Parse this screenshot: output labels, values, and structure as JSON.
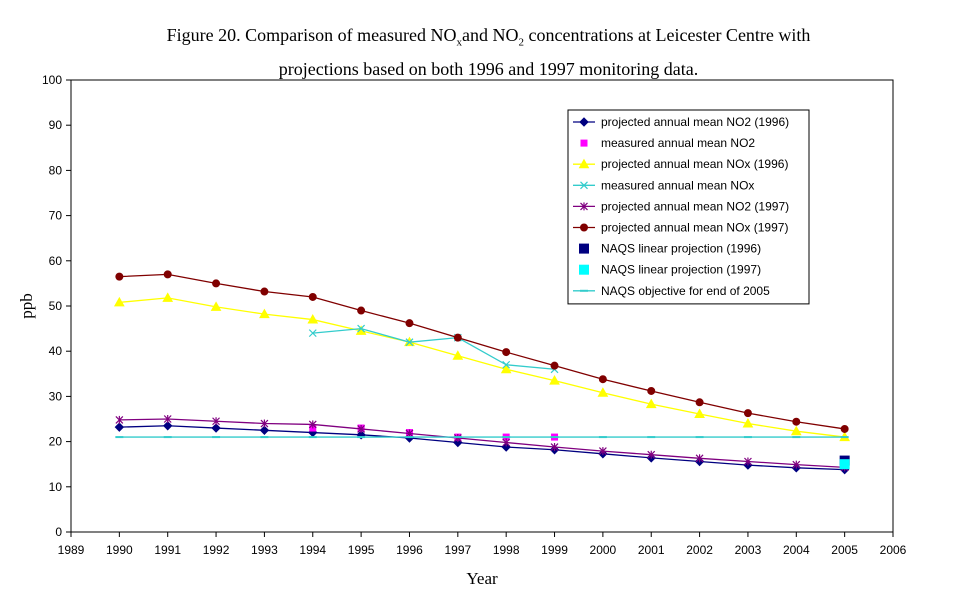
{
  "chart_data": {
    "type": "line",
    "title_line1_parts": [
      "Figure 20. Comparison of measured NO",
      "x",
      "and NO",
      "2",
      " concentrations at Leicester Centre with"
    ],
    "title_line2": "projections based on both 1996 and 1997 monitoring data.",
    "xlabel": "Year",
    "ylabel": "ppb",
    "xlim": [
      1989,
      2006
    ],
    "ylim": [
      0,
      100
    ],
    "xticks": [
      1989,
      1990,
      1991,
      1992,
      1993,
      1994,
      1995,
      1996,
      1997,
      1998,
      1999,
      2000,
      2001,
      2002,
      2003,
      2004,
      2005,
      2006
    ],
    "yticks": [
      0,
      10,
      20,
      30,
      40,
      50,
      60,
      70,
      80,
      90,
      100
    ],
    "grid": false,
    "legend_position": "top-right",
    "series": [
      {
        "name": "projected annual mean NO2 (1996)",
        "color": "#000080",
        "marker": "diamond",
        "line": true,
        "points": [
          [
            1990,
            23.2
          ],
          [
            1991,
            23.5
          ],
          [
            1992,
            23.0
          ],
          [
            1993,
            22.5
          ],
          [
            1994,
            22.0
          ],
          [
            1995,
            21.5
          ],
          [
            1996,
            20.8
          ],
          [
            1997,
            19.8
          ],
          [
            1998,
            18.8
          ],
          [
            1999,
            18.2
          ],
          [
            2000,
            17.3
          ],
          [
            2001,
            16.4
          ],
          [
            2002,
            15.6
          ],
          [
            2003,
            14.8
          ],
          [
            2004,
            14.2
          ],
          [
            2005,
            13.8
          ]
        ]
      },
      {
        "name": "measured annual mean NO2",
        "color": "#FF00FF",
        "marker": "square",
        "line": false,
        "points": [
          [
            1994,
            23.0
          ],
          [
            1995,
            23.0
          ],
          [
            1996,
            22.0
          ],
          [
            1997,
            21.0
          ],
          [
            1998,
            21.0
          ],
          [
            1999,
            21.0
          ]
        ]
      },
      {
        "name": "projected annual mean NOx (1996)",
        "color": "#FFFF00",
        "marker": "triangle",
        "line": true,
        "points": [
          [
            1990,
            50.8
          ],
          [
            1991,
            51.8
          ],
          [
            1992,
            49.8
          ],
          [
            1993,
            48.2
          ],
          [
            1994,
            47.0
          ],
          [
            1995,
            44.5
          ],
          [
            1996,
            42.0
          ],
          [
            1997,
            39.0
          ],
          [
            1998,
            36.0
          ],
          [
            1999,
            33.5
          ],
          [
            2000,
            30.8
          ],
          [
            2001,
            28.3
          ],
          [
            2002,
            26.1
          ],
          [
            2003,
            24.0
          ],
          [
            2004,
            22.3
          ],
          [
            2005,
            21.0
          ]
        ]
      },
      {
        "name": "measured annual mean NOx",
        "color": "#33CCCC",
        "marker": "x",
        "line": true,
        "points": [
          [
            1994,
            44.0
          ],
          [
            1995,
            45.0
          ],
          [
            1996,
            42.0
          ],
          [
            1997,
            43.0
          ],
          [
            1998,
            37.0
          ],
          [
            1999,
            36.0
          ]
        ]
      },
      {
        "name": "projected annual mean NO2 (1997)",
        "color": "#800080",
        "marker": "asterisk",
        "line": true,
        "points": [
          [
            1990,
            24.8
          ],
          [
            1991,
            25.0
          ],
          [
            1992,
            24.5
          ],
          [
            1993,
            24.0
          ],
          [
            1994,
            23.8
          ],
          [
            1995,
            22.8
          ],
          [
            1996,
            21.8
          ],
          [
            1997,
            20.8
          ],
          [
            1998,
            19.8
          ],
          [
            1999,
            18.8
          ],
          [
            2000,
            17.9
          ],
          [
            2001,
            17.1
          ],
          [
            2002,
            16.3
          ],
          [
            2003,
            15.6
          ],
          [
            2004,
            14.9
          ],
          [
            2005,
            14.3
          ]
        ]
      },
      {
        "name": "projected annual mean NOx (1997)",
        "color": "#800000",
        "marker": "circle",
        "line": true,
        "points": [
          [
            1990,
            56.5
          ],
          [
            1991,
            57.0
          ],
          [
            1992,
            55.0
          ],
          [
            1993,
            53.2
          ],
          [
            1994,
            52.0
          ],
          [
            1995,
            49.0
          ],
          [
            1996,
            46.2
          ],
          [
            1997,
            43.0
          ],
          [
            1998,
            39.8
          ],
          [
            1999,
            36.8
          ],
          [
            2000,
            33.8
          ],
          [
            2001,
            31.2
          ],
          [
            2002,
            28.7
          ],
          [
            2003,
            26.3
          ],
          [
            2004,
            24.4
          ],
          [
            2005,
            22.8
          ]
        ]
      },
      {
        "name": "NAQS linear projection (1996)",
        "color": "#000080",
        "marker": "bigsquare",
        "line": false,
        "points": [
          [
            2005,
            15.8
          ]
        ]
      },
      {
        "name": "NAQS linear projection (1997)",
        "color": "#00FFFF",
        "marker": "bigsquare",
        "line": false,
        "points": [
          [
            2005,
            15.0
          ]
        ]
      },
      {
        "name": "NAQS objective for end of 2005",
        "color": "#33CCCC",
        "marker": "dash",
        "line": true,
        "points": [
          [
            1990,
            21
          ],
          [
            1991,
            21
          ],
          [
            1992,
            21
          ],
          [
            1993,
            21
          ],
          [
            1994,
            21
          ],
          [
            1995,
            21
          ],
          [
            1996,
            21
          ],
          [
            1997,
            21
          ],
          [
            1998,
            21
          ],
          [
            1999,
            21
          ],
          [
            2000,
            21
          ],
          [
            2001,
            21
          ],
          [
            2002,
            21
          ],
          [
            2003,
            21
          ],
          [
            2004,
            21
          ],
          [
            2005,
            21
          ]
        ]
      }
    ]
  }
}
